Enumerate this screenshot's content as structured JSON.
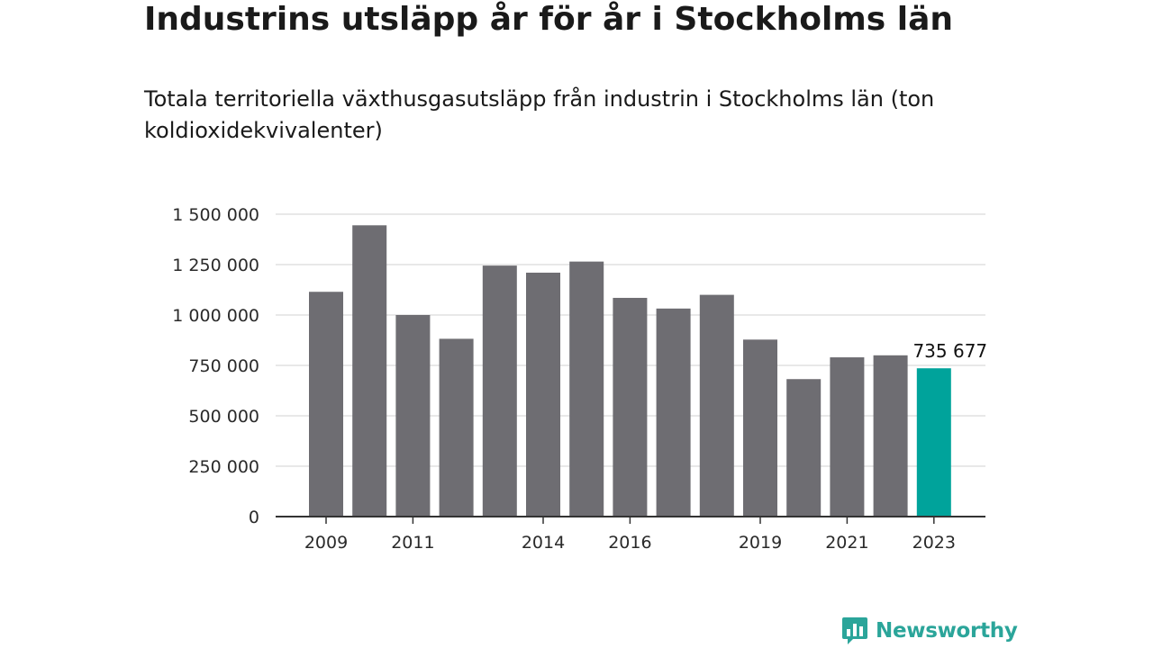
{
  "title": "Industrins utsläpp år för år i Stockholms län",
  "subtitle": "Totala territoriella växthusgasutsläpp från industrin i Stockholms län (ton koldioxidekvivalenter)",
  "brand": {
    "name": "Newsworthy",
    "color": "#2ba59a",
    "icon": "bar-chart-speech-bubble-icon"
  },
  "colors": {
    "bar": "#6e6d72",
    "highlight": "#00a39b",
    "grid": "#d9d9d9",
    "axis": "#333333"
  },
  "chart_data": {
    "type": "bar",
    "title": "Industrins utsläpp år för år i Stockholms län",
    "subtitle": "Totala territoriella växthusgasutsläpp från industrin i Stockholms län (ton koldioxidekvivalenter)",
    "xlabel": "",
    "ylabel": "",
    "categories": [
      "2009",
      "2010",
      "2011",
      "2012",
      "2013",
      "2014",
      "2015",
      "2016",
      "2017",
      "2018",
      "2019",
      "2020",
      "2021",
      "2022",
      "2023"
    ],
    "x_tick_labels": [
      "2009",
      "2011",
      "2014",
      "2016",
      "2019",
      "2021",
      "2023"
    ],
    "values": [
      1115000,
      1445000,
      1000000,
      882000,
      1245000,
      1210000,
      1265000,
      1085000,
      1032000,
      1100000,
      878000,
      682000,
      790000,
      800000,
      735677
    ],
    "highlight_index": 14,
    "data_labels": [
      {
        "index": 14,
        "text": "735 677"
      }
    ],
    "ylim": [
      0,
      1500000
    ],
    "y_ticks": [
      0,
      250000,
      500000,
      750000,
      1000000,
      1250000,
      1500000
    ],
    "y_tick_labels": [
      "0",
      "250 000",
      "500 000",
      "750 000",
      "1 000 000",
      "1 250 000",
      "1 500 000"
    ],
    "grid": true,
    "legend": "none"
  }
}
